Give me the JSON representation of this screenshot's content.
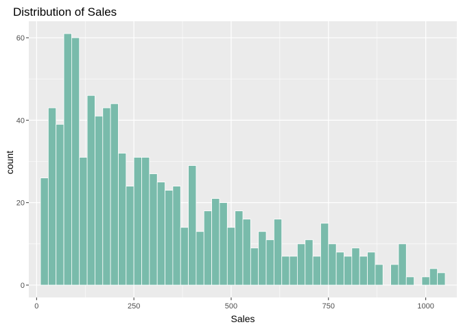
{
  "chart_data": {
    "type": "bar",
    "title": "Distribution of Sales",
    "xlabel": "Sales",
    "ylabel": "count",
    "xlim": [
      -20,
      1080
    ],
    "ylim": [
      -3,
      64
    ],
    "x_ticks": [
      0,
      250,
      500,
      750,
      1000
    ],
    "y_ticks": [
      0,
      20,
      40,
      60
    ],
    "grid": true,
    "legend": "none",
    "bin_width": 20,
    "bins": [
      {
        "x": 20,
        "y": 26
      },
      {
        "x": 40,
        "y": 43
      },
      {
        "x": 60,
        "y": 39
      },
      {
        "x": 80,
        "y": 61
      },
      {
        "x": 100,
        "y": 60
      },
      {
        "x": 120,
        "y": 31
      },
      {
        "x": 140,
        "y": 46
      },
      {
        "x": 160,
        "y": 41
      },
      {
        "x": 180,
        "y": 43
      },
      {
        "x": 200,
        "y": 44
      },
      {
        "x": 220,
        "y": 32
      },
      {
        "x": 240,
        "y": 24
      },
      {
        "x": 260,
        "y": 31
      },
      {
        "x": 280,
        "y": 31
      },
      {
        "x": 300,
        "y": 27
      },
      {
        "x": 320,
        "y": 25
      },
      {
        "x": 340,
        "y": 23
      },
      {
        "x": 360,
        "y": 24
      },
      {
        "x": 380,
        "y": 14
      },
      {
        "x": 400,
        "y": 29
      },
      {
        "x": 420,
        "y": 13
      },
      {
        "x": 440,
        "y": 18
      },
      {
        "x": 460,
        "y": 21
      },
      {
        "x": 480,
        "y": 20
      },
      {
        "x": 500,
        "y": 14
      },
      {
        "x": 520,
        "y": 18
      },
      {
        "x": 540,
        "y": 16
      },
      {
        "x": 560,
        "y": 9
      },
      {
        "x": 580,
        "y": 13
      },
      {
        "x": 600,
        "y": 11
      },
      {
        "x": 620,
        "y": 16
      },
      {
        "x": 640,
        "y": 7
      },
      {
        "x": 660,
        "y": 7
      },
      {
        "x": 680,
        "y": 10
      },
      {
        "x": 700,
        "y": 11
      },
      {
        "x": 720,
        "y": 7
      },
      {
        "x": 740,
        "y": 15
      },
      {
        "x": 760,
        "y": 10
      },
      {
        "x": 780,
        "y": 8
      },
      {
        "x": 800,
        "y": 7
      },
      {
        "x": 820,
        "y": 9
      },
      {
        "x": 840,
        "y": 7
      },
      {
        "x": 860,
        "y": 8
      },
      {
        "x": 880,
        "y": 5
      },
      {
        "x": 900,
        "y": 0
      },
      {
        "x": 920,
        "y": 5
      },
      {
        "x": 940,
        "y": 10
      },
      {
        "x": 960,
        "y": 2
      },
      {
        "x": 980,
        "y": 0
      },
      {
        "x": 1000,
        "y": 2
      },
      {
        "x": 1020,
        "y": 4
      },
      {
        "x": 1040,
        "y": 3
      }
    ],
    "colors": {
      "fill": "#79bbab",
      "stroke": "#ffffff",
      "panel": "#ebebeb",
      "grid": "#ffffff"
    }
  }
}
